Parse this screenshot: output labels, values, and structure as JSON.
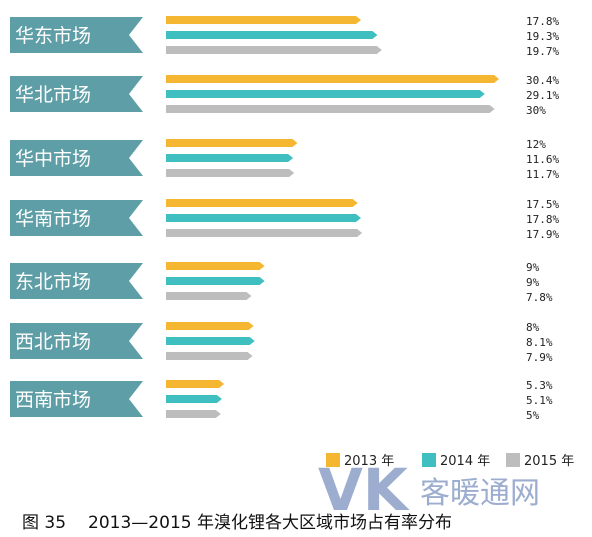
{
  "chart_data": {
    "type": "bar",
    "orientation": "horizontal",
    "title": "2013—2015 年溴化锂各大区域市场占有率分布",
    "figure_label": "图 35",
    "categories": [
      "华东市场",
      "华北市场",
      "华中市场",
      "华南市场",
      "东北市场",
      "西北市场",
      "西南市场"
    ],
    "series": [
      {
        "name": "2013 年",
        "color": "#f5b731",
        "values": [
          17.8,
          30.4,
          12,
          17.5,
          9,
          8,
          5.3
        ]
      },
      {
        "name": "2014 年",
        "color": "#3fbfbf",
        "values": [
          19.3,
          29.1,
          11.6,
          17.8,
          9,
          8.1,
          5.1
        ]
      },
      {
        "name": "2015 年",
        "color": "#bdbdbd",
        "values": [
          19.7,
          30,
          11.7,
          17.9,
          7.8,
          7.9,
          5
        ]
      }
    ],
    "value_labels": [
      [
        "17.8%",
        "19.3%",
        "19.7%"
      ],
      [
        "30.4%",
        "29.1%",
        "30%"
      ],
      [
        "12%",
        "11.6%",
        "11.7%"
      ],
      [
        "17.5%",
        "17.8%",
        "17.9%"
      ],
      [
        "9%",
        "9%",
        "7.8%"
      ],
      [
        "8%",
        "8.1%",
        "7.9%"
      ],
      [
        "5.3%",
        "5.1%",
        "5%"
      ]
    ],
    "unit": "%",
    "xlim": [
      0,
      31
    ],
    "legend_position": "bottom-right",
    "label_color": "#5e9ea6",
    "grid": false
  },
  "watermark": "VK客暖通网"
}
